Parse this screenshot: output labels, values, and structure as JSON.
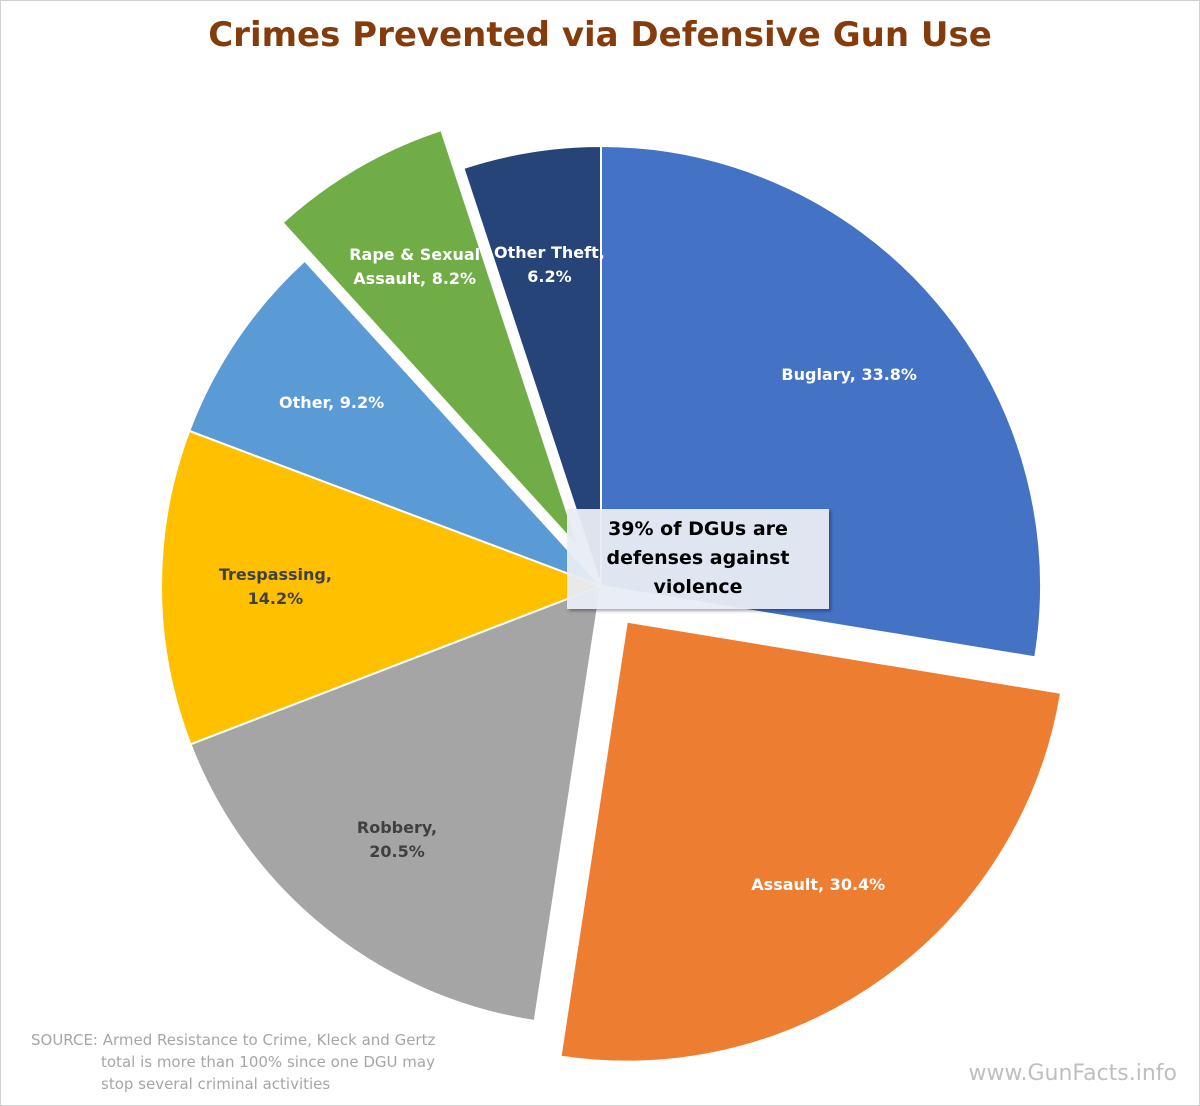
{
  "chart_data": {
    "type": "pie",
    "title": "Crimes Prevented via Defensive Gun Use",
    "values": [
      33.8,
      30.4,
      20.5,
      14.2,
      9.2,
      8.2,
      6.2
    ],
    "value_labels": [
      "Buglary, 33.8%",
      "Assault, 30.4%",
      "Robbery, 20.5%",
      "Trespassing,  14.2%",
      "Other, 9.2%",
      "Rape & Sexual Assault, 8.2%",
      "Other Theft, 6.2%"
    ],
    "colors": [
      "#4472c4",
      "#ed7d31",
      "#a5a5a5",
      "#ffc000",
      "#5b9bd5",
      "#70ad47",
      "#264478"
    ],
    "explode": [
      0,
      0.1,
      0,
      0,
      0,
      0.1,
      0
    ],
    "annotation": "39% of DGUs are defenses against violence",
    "source": [
      "SOURCE: Armed Resistance to Crime, Kleck and Gertz",
      "total is more than 100% since one DGU may",
      "stop several criminal activities"
    ],
    "watermark": "www.GunFacts.info"
  }
}
